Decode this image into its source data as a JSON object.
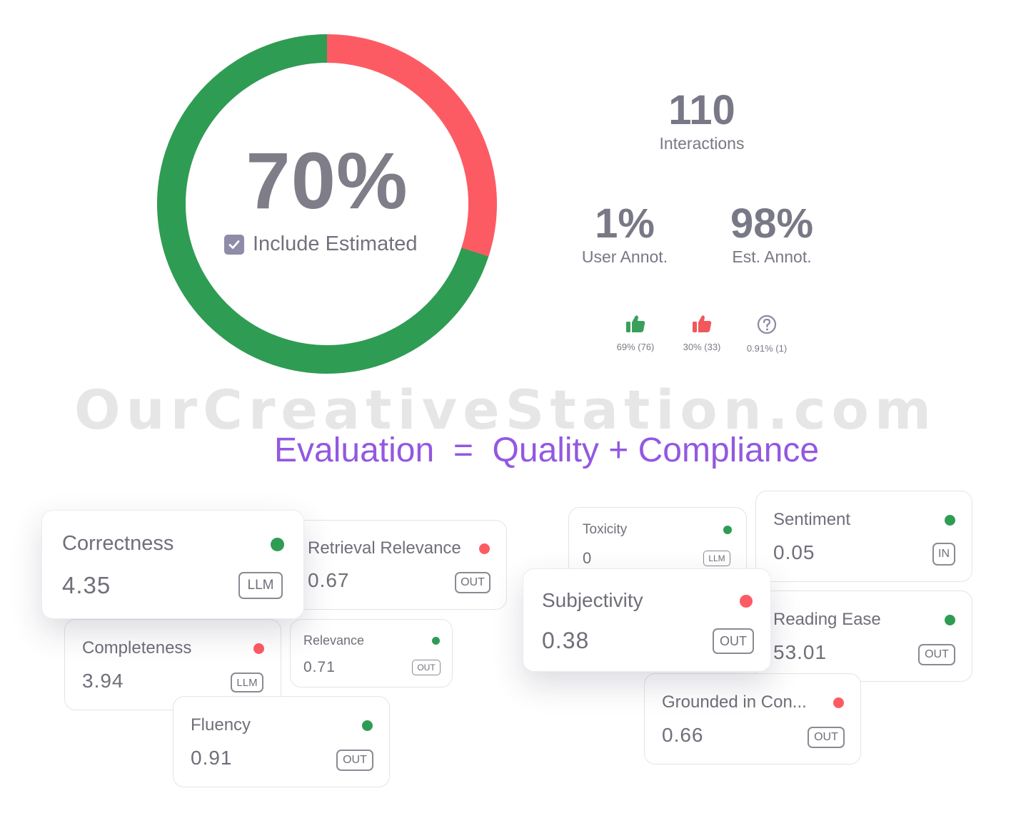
{
  "summary": {
    "score_percent": "70%",
    "score_fraction": 0.7,
    "include_estimated_label": "Include Estimated",
    "include_estimated_checked": true,
    "interactions_count": "110",
    "interactions_label": "Interactions",
    "user_annot_value": "1%",
    "user_annot_label": "User Annot.",
    "est_annot_value": "98%",
    "est_annot_label": "Est. Annot.",
    "breakdown": [
      {
        "icon": "thumbs-up-icon",
        "label": "69% (76)",
        "color": "#3a9f5a"
      },
      {
        "icon": "thumbs-down-icon",
        "label": "30% (33)",
        "color": "#f0585c"
      },
      {
        "icon": "question-circle-icon",
        "label": "0.91% (1)",
        "color": "#8a88a6"
      }
    ]
  },
  "colors": {
    "good": "#2f9c53",
    "bad": "#fd5b63",
    "accent": "#9358e0"
  },
  "watermark": "OurCreativeStation.com",
  "headline": "Evaluation  =  Quality + Compliance",
  "cards": {
    "correctness": {
      "title": "Correctness",
      "value": "4.35",
      "tag": "LLM",
      "status": "good"
    },
    "retrieval_relevance": {
      "title": "Retrieval Relevance",
      "value": "0.67",
      "tag": "OUT",
      "status": "bad"
    },
    "completeness": {
      "title": "Completeness",
      "value": "3.94",
      "tag": "LLM",
      "status": "bad"
    },
    "relevance": {
      "title": "Relevance",
      "value": "0.71",
      "tag": "OUT",
      "status": "good"
    },
    "fluency": {
      "title": "Fluency",
      "value": "0.91",
      "tag": "OUT",
      "status": "good"
    },
    "toxicity": {
      "title": "Toxicity",
      "value": "0",
      "tag": "LLM",
      "status": "good"
    },
    "sentiment": {
      "title": "Sentiment",
      "value": "0.05",
      "tag": "IN",
      "status": "good"
    },
    "subjectivity": {
      "title": "Subjectivity",
      "value": "0.38",
      "tag": "OUT",
      "status": "bad"
    },
    "reading_ease": {
      "title": "Reading Ease",
      "value": "53.01",
      "tag": "OUT",
      "status": "good"
    },
    "grounded": {
      "title": "Grounded in Con...",
      "value": "0.66",
      "tag": "OUT",
      "status": "bad"
    }
  }
}
